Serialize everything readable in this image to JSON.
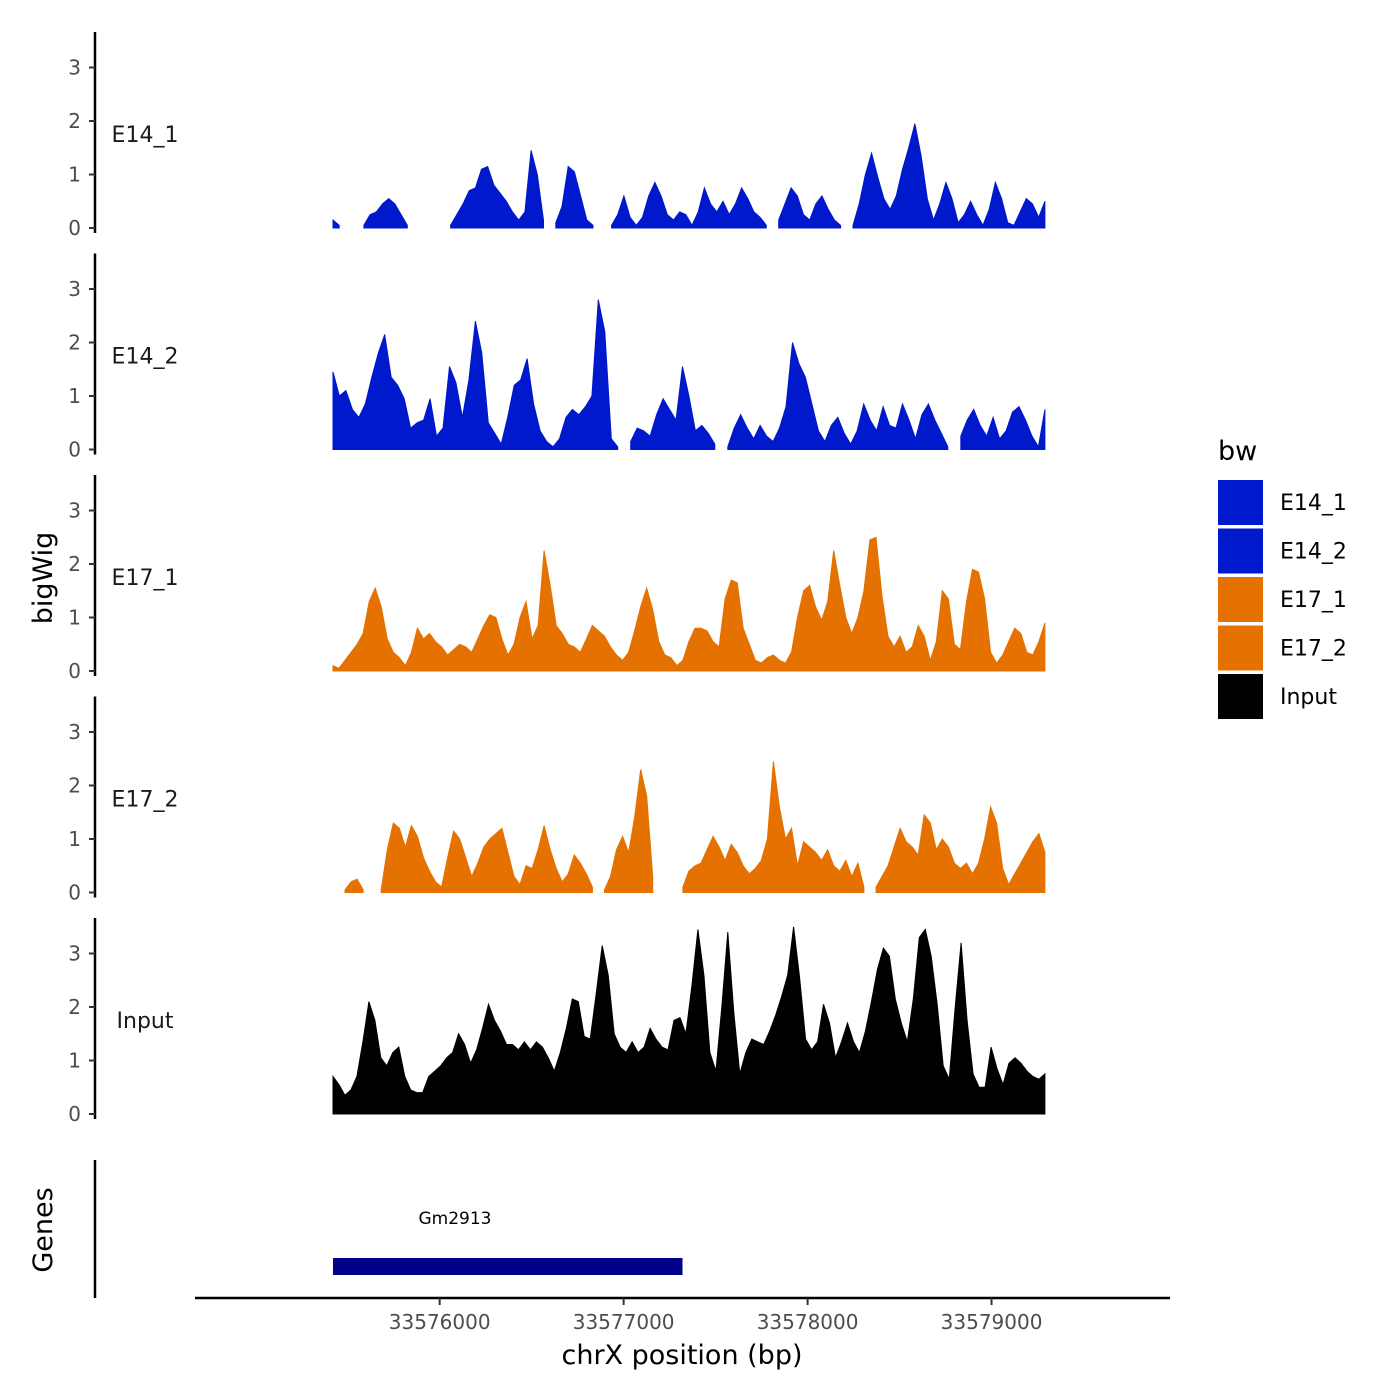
{
  "chart_data": {
    "type": "area",
    "tracks": [
      {
        "name": "E14_1",
        "color": "#0019CC",
        "values": [
          0.15,
          0.05,
          -1,
          -1,
          -1,
          0.05,
          0.25,
          0.3,
          0.45,
          0.55,
          0.45,
          0.25,
          0.05,
          -1,
          -1,
          -1,
          -1,
          -1,
          -1,
          0.05,
          0.25,
          0.45,
          0.7,
          0.75,
          1.1,
          1.15,
          0.8,
          0.65,
          0.5,
          0.3,
          0.15,
          0.3,
          1.45,
          1.0,
          0.15,
          -1,
          0.1,
          0.4,
          1.15,
          1.05,
          0.6,
          0.15,
          0.05,
          -1,
          -1,
          0.05,
          0.25,
          0.6,
          0.2,
          0.05,
          0.2,
          0.6,
          0.85,
          0.6,
          0.25,
          0.15,
          0.3,
          0.25,
          0.05,
          0.3,
          0.75,
          0.45,
          0.3,
          0.5,
          0.25,
          0.45,
          0.75,
          0.55,
          0.3,
          0.2,
          0.05,
          -1,
          0.15,
          0.45,
          0.75,
          0.6,
          0.25,
          0.15,
          0.45,
          0.6,
          0.35,
          0.15,
          0.05,
          -1,
          0.05,
          0.45,
          1.0,
          1.4,
          0.95,
          0.55,
          0.35,
          0.6,
          1.1,
          1.5,
          1.95,
          1.35,
          0.55,
          0.15,
          0.45,
          0.85,
          0.55,
          0.1,
          0.25,
          0.5,
          0.25,
          0.05,
          0.35,
          0.85,
          0.55,
          0.1,
          0.05,
          0.3,
          0.55,
          0.45,
          0.2,
          0.5
        ]
      },
      {
        "name": "E14_2",
        "color": "#0019CC",
        "values": [
          1.45,
          1.0,
          1.1,
          0.75,
          0.6,
          0.85,
          1.35,
          1.8,
          2.15,
          1.35,
          1.2,
          0.95,
          0.4,
          0.5,
          0.55,
          0.95,
          0.25,
          0.4,
          1.55,
          1.25,
          0.6,
          1.3,
          2.4,
          1.8,
          0.5,
          0.3,
          0.1,
          0.6,
          1.2,
          1.3,
          1.7,
          0.85,
          0.35,
          0.15,
          0.05,
          0.2,
          0.6,
          0.75,
          0.65,
          0.8,
          1.0,
          2.8,
          2.2,
          0.2,
          0.05,
          -1,
          0.15,
          0.4,
          0.35,
          0.25,
          0.65,
          0.95,
          0.75,
          0.55,
          1.55,
          1.0,
          0.35,
          0.45,
          0.3,
          0.1,
          -1,
          0.05,
          0.4,
          0.65,
          0.4,
          0.2,
          0.45,
          0.25,
          0.15,
          0.4,
          0.8,
          2.0,
          1.6,
          1.35,
          0.85,
          0.35,
          0.15,
          0.45,
          0.6,
          0.3,
          0.1,
          0.35,
          0.85,
          0.55,
          0.35,
          0.8,
          0.45,
          0.4,
          0.85,
          0.55,
          0.2,
          0.65,
          0.85,
          0.55,
          0.3,
          0.05,
          -1,
          0.25,
          0.55,
          0.75,
          0.45,
          0.25,
          0.6,
          0.2,
          0.35,
          0.7,
          0.8,
          0.55,
          0.25,
          0.05,
          0.75
        ]
      },
      {
        "name": "E17_1",
        "color": "#E57200",
        "values": [
          0.1,
          0.05,
          0.2,
          0.35,
          0.5,
          0.7,
          1.3,
          1.55,
          1.2,
          0.6,
          0.35,
          0.25,
          0.1,
          0.35,
          0.8,
          0.6,
          0.7,
          0.55,
          0.45,
          0.3,
          0.4,
          0.5,
          0.45,
          0.35,
          0.6,
          0.85,
          1.05,
          1.0,
          0.6,
          0.3,
          0.5,
          1.0,
          1.3,
          0.6,
          0.85,
          2.25,
          1.6,
          0.85,
          0.7,
          0.5,
          0.45,
          0.35,
          0.6,
          0.85,
          0.75,
          0.65,
          0.45,
          0.3,
          0.2,
          0.35,
          0.75,
          1.2,
          1.55,
          1.15,
          0.55,
          0.3,
          0.25,
          0.1,
          0.2,
          0.55,
          0.8,
          0.8,
          0.75,
          0.55,
          0.45,
          1.35,
          1.7,
          1.65,
          0.8,
          0.5,
          0.2,
          0.15,
          0.25,
          0.3,
          0.2,
          0.15,
          0.35,
          1.0,
          1.5,
          1.6,
          1.2,
          0.95,
          1.3,
          2.25,
          1.6,
          1.0,
          0.7,
          1.0,
          1.5,
          2.45,
          2.5,
          1.4,
          0.65,
          0.45,
          0.65,
          0.35,
          0.45,
          0.85,
          0.65,
          0.2,
          0.55,
          1.5,
          1.35,
          0.5,
          0.4,
          1.3,
          1.9,
          1.85,
          1.35,
          0.35,
          0.15,
          0.3,
          0.55,
          0.8,
          0.7,
          0.35,
          0.3,
          0.55,
          0.9
        ]
      },
      {
        "name": "E17_2",
        "color": "#E57200",
        "values": [
          -1,
          -1,
          0.05,
          0.2,
          0.25,
          0.05,
          -1,
          -1,
          0.05,
          0.8,
          1.3,
          1.2,
          0.85,
          1.25,
          1.05,
          0.65,
          0.4,
          0.2,
          0.1,
          0.65,
          1.15,
          1.0,
          0.65,
          0.3,
          0.55,
          0.85,
          1.0,
          1.1,
          1.2,
          0.75,
          0.3,
          0.15,
          0.5,
          0.45,
          0.8,
          1.25,
          0.8,
          0.45,
          0.2,
          0.35,
          0.7,
          0.55,
          0.35,
          0.1,
          -1,
          0.05,
          0.3,
          0.8,
          1.05,
          0.75,
          1.4,
          2.3,
          1.8,
          0.3,
          -1,
          -1,
          -1,
          -1,
          0.1,
          0.4,
          0.5,
          0.55,
          0.8,
          1.05,
          0.85,
          0.6,
          0.9,
          0.75,
          0.5,
          0.35,
          0.45,
          0.6,
          1.0,
          2.45,
          1.6,
          1.0,
          1.2,
          0.5,
          0.95,
          0.85,
          0.75,
          0.6,
          0.8,
          0.5,
          0.4,
          0.6,
          0.3,
          0.55,
          0.1,
          -1,
          0.1,
          0.3,
          0.5,
          0.85,
          1.2,
          0.95,
          0.85,
          0.7,
          1.45,
          1.3,
          0.8,
          1.0,
          0.85,
          0.55,
          0.45,
          0.55,
          0.35,
          0.55,
          1.0,
          1.6,
          1.3,
          0.45,
          0.15,
          0.35,
          0.55,
          0.75,
          0.95,
          1.1,
          0.75
        ]
      },
      {
        "name": "Input",
        "color": "#000000",
        "values": [
          0.7,
          0.55,
          0.35,
          0.45,
          0.7,
          1.35,
          2.1,
          1.75,
          1.05,
          0.9,
          1.15,
          1.25,
          0.7,
          0.45,
          0.4,
          0.4,
          0.7,
          0.8,
          0.9,
          1.05,
          1.15,
          1.5,
          1.3,
          0.95,
          1.2,
          1.6,
          2.05,
          1.75,
          1.55,
          1.3,
          1.3,
          1.2,
          1.35,
          1.2,
          1.35,
          1.25,
          1.05,
          0.8,
          1.15,
          1.6,
          2.15,
          2.1,
          1.45,
          1.4,
          2.25,
          3.15,
          2.6,
          1.5,
          1.25,
          1.15,
          1.35,
          1.15,
          1.25,
          1.6,
          1.4,
          1.25,
          1.2,
          1.75,
          1.8,
          1.5,
          2.4,
          3.45,
          2.6,
          1.15,
          0.8,
          2.0,
          3.4,
          1.9,
          0.75,
          1.15,
          1.4,
          1.35,
          1.3,
          1.55,
          1.85,
          2.2,
          2.6,
          3.5,
          2.55,
          1.4,
          1.2,
          1.35,
          2.05,
          1.7,
          1.05,
          1.35,
          1.7,
          1.35,
          1.15,
          1.55,
          2.1,
          2.7,
          3.1,
          2.95,
          2.15,
          1.7,
          1.35,
          2.15,
          3.3,
          3.45,
          2.95,
          2.05,
          0.9,
          0.65,
          2.0,
          3.2,
          1.75,
          0.75,
          0.5,
          0.5,
          1.25,
          0.85,
          0.55,
          0.95,
          1.05,
          0.95,
          0.8,
          0.7,
          0.65,
          0.75
        ]
      }
    ],
    "track_xrange": [
      33575420,
      33579290
    ],
    "xrange": [
      33574670,
      33579970
    ],
    "ylim": [
      0,
      3.7
    ],
    "yticks": [
      0,
      1,
      2,
      3
    ],
    "xticks": [
      33576000,
      33577000,
      33578000,
      33579000
    ],
    "xtick_labels": [
      "33576000",
      "33577000",
      "33578000",
      "33579000"
    ],
    "xlabel": "chrX position (bp)",
    "ylabel": "bigWig",
    "genes_label": "Genes",
    "genes": [
      {
        "name": "Gm2913",
        "start": 33575420,
        "end": 33577320
      }
    ],
    "legend": {
      "title": "bw",
      "items": [
        {
          "label": "E14_1",
          "color": "#0019CC"
        },
        {
          "label": "E14_2",
          "color": "#0019CC"
        },
        {
          "label": "E17_1",
          "color": "#E57200"
        },
        {
          "label": "E17_2",
          "color": "#E57200"
        },
        {
          "label": "Input",
          "color": "#000000"
        }
      ]
    }
  }
}
